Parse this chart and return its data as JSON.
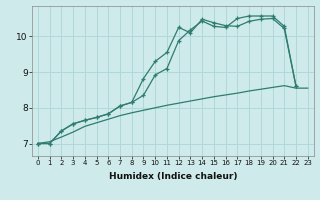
{
  "xlabel": "Humidex (Indice chaleur)",
  "ylabel": "",
  "xlim": [
    -0.5,
    23.5
  ],
  "ylim": [
    6.65,
    10.85
  ],
  "xticks": [
    0,
    1,
    2,
    3,
    4,
    5,
    6,
    7,
    8,
    9,
    10,
    11,
    12,
    13,
    14,
    15,
    16,
    17,
    18,
    19,
    20,
    21,
    22,
    23
  ],
  "yticks": [
    7,
    8,
    9,
    10
  ],
  "background_color": "#ceeaea",
  "line_color": "#2e7d6e",
  "grid_color": "#b0d8d8",
  "line1_x": [
    0,
    1,
    2,
    3,
    4,
    5,
    6,
    7,
    8,
    9,
    10,
    11,
    12,
    13,
    14,
    15,
    16,
    17,
    18,
    19,
    20,
    21,
    22
  ],
  "line1_y": [
    7.0,
    7.0,
    7.35,
    7.55,
    7.65,
    7.73,
    7.83,
    8.05,
    8.15,
    8.82,
    9.3,
    9.55,
    10.25,
    10.1,
    10.48,
    10.38,
    10.3,
    10.28,
    10.42,
    10.48,
    10.5,
    10.22,
    8.6
  ],
  "line2_x": [
    0,
    1,
    2,
    3,
    4,
    5,
    6,
    7,
    8,
    9,
    10,
    11,
    12,
    13,
    14,
    15,
    16,
    17,
    18,
    19,
    20,
    21,
    22
  ],
  "line2_y": [
    7.0,
    7.0,
    7.35,
    7.55,
    7.65,
    7.73,
    7.83,
    8.05,
    8.15,
    8.35,
    8.92,
    9.1,
    9.88,
    10.18,
    10.43,
    10.28,
    10.25,
    10.5,
    10.57,
    10.57,
    10.57,
    10.28,
    8.6
  ],
  "line3_x": [
    0,
    1,
    2,
    3,
    4,
    5,
    6,
    7,
    8,
    9,
    10,
    11,
    12,
    13,
    14,
    15,
    16,
    17,
    18,
    19,
    20,
    21,
    22,
    23
  ],
  "line3_y": [
    7.0,
    7.05,
    7.18,
    7.32,
    7.48,
    7.58,
    7.68,
    7.78,
    7.86,
    7.93,
    8.0,
    8.07,
    8.13,
    8.19,
    8.25,
    8.31,
    8.36,
    8.41,
    8.47,
    8.52,
    8.57,
    8.62,
    8.55,
    8.55
  ]
}
